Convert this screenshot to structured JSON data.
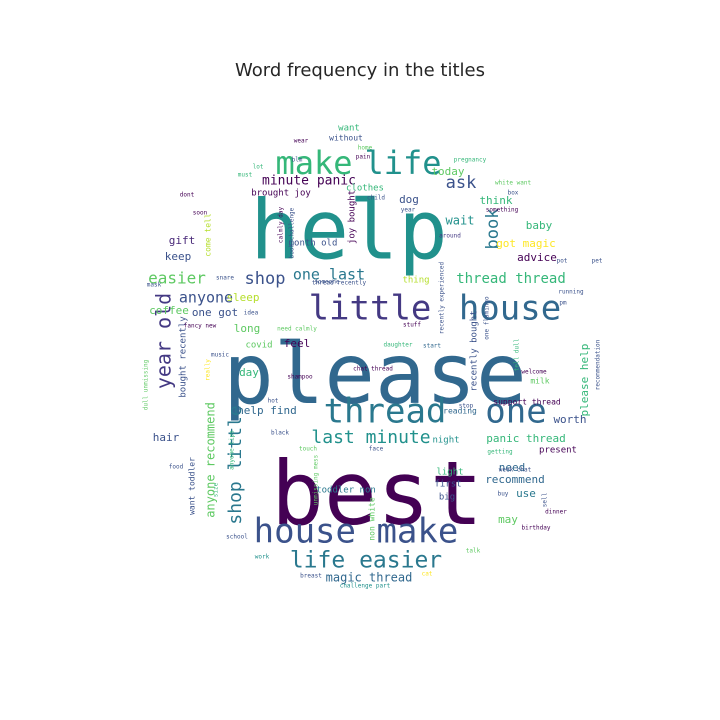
{
  "chart_data": {
    "type": "wordcloud",
    "title": "Word frequency in the titles",
    "shape": "circle",
    "background": "#ffffff",
    "colormap": "viridis",
    "words": [
      {
        "text": "please",
        "weight": 100,
        "color": "#31688e"
      },
      {
        "text": "best",
        "weight": 92,
        "color": "#440154"
      },
      {
        "text": "help",
        "weight": 88,
        "color": "#21918c"
      },
      {
        "text": "thread",
        "weight": 44,
        "color": "#2a788e"
      },
      {
        "text": "one",
        "weight": 44,
        "color": "#31688e"
      },
      {
        "text": "little",
        "weight": 42,
        "color": "#443983"
      },
      {
        "text": "house",
        "weight": 42,
        "color": "#31688e"
      },
      {
        "text": "make",
        "weight": 40,
        "color": "#35b779"
      },
      {
        "text": "life",
        "weight": 40,
        "color": "#21918c"
      },
      {
        "text": "house make",
        "weight": 39,
        "color": "#3b528b"
      },
      {
        "text": "life easier",
        "weight": 26,
        "color": "#2a788e"
      },
      {
        "text": "last minute",
        "weight": 22,
        "color": "#21918c"
      },
      {
        "text": "year old",
        "weight": 20,
        "color": "#443983"
      },
      {
        "text": "shop little",
        "weight": 19,
        "color": "#2a788e"
      },
      {
        "text": "easier",
        "weight": 18,
        "color": "#5ec962"
      },
      {
        "text": "shop",
        "weight": 18,
        "color": "#3b528b"
      },
      {
        "text": "one last",
        "weight": 16,
        "color": "#2a788e"
      },
      {
        "text": "book",
        "weight": 16,
        "color": "#2a788e"
      },
      {
        "text": "ask",
        "weight": 16,
        "color": "#3b528b"
      },
      {
        "text": "anyone",
        "weight": 15,
        "color": "#3b528b"
      },
      {
        "text": "thread thread",
        "weight": 15,
        "color": "#35b779"
      },
      {
        "text": "minute panic",
        "weight": 14,
        "color": "#440154"
      },
      {
        "text": "wait",
        "weight": 11,
        "color": "#21918c"
      },
      {
        "text": "magic thread",
        "weight": 11,
        "color": "#31688e"
      },
      {
        "text": "anyone recommend",
        "weight": 11,
        "color": "#5ec962"
      },
      {
        "text": "panic thread",
        "weight": 11,
        "color": "#35b779"
      },
      {
        "text": "please help",
        "weight": 11,
        "color": "#35b779"
      },
      {
        "text": "got magic",
        "weight": 11,
        "color": "#fde725"
      },
      {
        "text": "sleep",
        "weight": 11,
        "color": "#b5de2b"
      },
      {
        "text": "dog",
        "weight": 11,
        "color": "#3b528b"
      },
      {
        "text": "today",
        "weight": 11,
        "color": "#5ec962"
      },
      {
        "text": "baby",
        "weight": 11,
        "color": "#35b779"
      },
      {
        "text": "gift",
        "weight": 11,
        "color": "#482878"
      },
      {
        "text": "keep",
        "weight": 11,
        "color": "#3b528b"
      },
      {
        "text": "advice",
        "weight": 11,
        "color": "#440154"
      },
      {
        "text": "coffee",
        "weight": 11,
        "color": "#5ec962"
      },
      {
        "text": "one got",
        "weight": 11,
        "color": "#3b528b"
      },
      {
        "text": "long",
        "weight": 11,
        "color": "#5ec962"
      },
      {
        "text": "feel",
        "weight": 11,
        "color": "#440154"
      },
      {
        "text": "day",
        "weight": 11,
        "color": "#35b779"
      },
      {
        "text": "help find",
        "weight": 11,
        "color": "#31688e"
      },
      {
        "text": "hair",
        "weight": 11,
        "color": "#3b528b"
      },
      {
        "text": "recommend",
        "weight": 11,
        "color": "#31688e"
      },
      {
        "text": "need",
        "weight": 11,
        "color": "#31688e"
      },
      {
        "text": "use",
        "weight": 11,
        "color": "#2a788e"
      },
      {
        "text": "may",
        "weight": 11,
        "color": "#5ec962"
      },
      {
        "text": "worth",
        "weight": 11,
        "color": "#3b528b"
      },
      {
        "text": "think",
        "weight": 11,
        "color": "#35b779"
      },
      {
        "text": "present",
        "weight": 9,
        "color": "#440154"
      },
      {
        "text": "joy bought",
        "weight": 9,
        "color": "#440154"
      },
      {
        "text": "brought joy",
        "weight": 9,
        "color": "#440154"
      },
      {
        "text": "clothes",
        "weight": 9,
        "color": "#35b779"
      },
      {
        "text": "month old",
        "weight": 9,
        "color": "#3b528b"
      },
      {
        "text": "covid",
        "weight": 9,
        "color": "#5ec962"
      },
      {
        "text": "night",
        "weight": 9,
        "color": "#21918c"
      },
      {
        "text": "light",
        "weight": 9,
        "color": "#35b779"
      },
      {
        "text": "first",
        "weight": 9,
        "color": "#3b528b"
      },
      {
        "text": "big",
        "weight": 9,
        "color": "#3b528b"
      },
      {
        "text": "toddler non",
        "weight": 9,
        "color": "#2a788e"
      },
      {
        "text": "recently bought",
        "weight": 9,
        "color": "#3b528b"
      },
      {
        "text": "thing",
        "weight": 9,
        "color": "#b5de2b"
      },
      {
        "text": "bought recently",
        "weight": 9,
        "color": "#3b528b"
      },
      {
        "text": "want toddler",
        "weight": 8,
        "color": "#3b528b"
      },
      {
        "text": "milk",
        "weight": 8,
        "color": "#5ec962"
      },
      {
        "text": "support thread",
        "weight": 8,
        "color": "#440154"
      },
      {
        "text": "reading",
        "weight": 8,
        "color": "#31688e"
      },
      {
        "text": "non white",
        "weight": 8,
        "color": "#5ec962"
      },
      {
        "text": "without",
        "weight": 8,
        "color": "#3b528b"
      },
      {
        "text": "come tell",
        "weight": 8,
        "color": "#b5de2b"
      },
      {
        "text": "want",
        "weight": 8,
        "color": "#35b779"
      },
      {
        "text": "pregnancy",
        "weight": 6,
        "color": "#35b779"
      },
      {
        "text": "welcome",
        "weight": 6,
        "color": "#440154"
      },
      {
        "text": "stuff",
        "weight": 6,
        "color": "#440154"
      },
      {
        "text": "start",
        "weight": 6,
        "color": "#31688e"
      },
      {
        "text": "daughter",
        "weight": 6,
        "color": "#35b779"
      },
      {
        "text": "music",
        "weight": 6,
        "color": "#3b528b"
      },
      {
        "text": "really",
        "weight": 6,
        "color": "#fde725"
      },
      {
        "text": "shampoo",
        "weight": 6,
        "color": "#440154"
      },
      {
        "text": "chat thread",
        "weight": 6,
        "color": "#440154"
      },
      {
        "text": "someone",
        "weight": 6,
        "color": "#3b528b"
      },
      {
        "text": "running",
        "weight": 6,
        "color": "#3b528b"
      },
      {
        "text": "around",
        "weight": 6,
        "color": "#443983"
      },
      {
        "text": "school",
        "weight": 6,
        "color": "#3b528b"
      },
      {
        "text": "work",
        "weight": 6,
        "color": "#21918c"
      },
      {
        "text": "birthday",
        "weight": 6,
        "color": "#440154"
      },
      {
        "text": "dinner",
        "weight": 6,
        "color": "#440154"
      },
      {
        "text": "getting",
        "weight": 6,
        "color": "#35b779"
      },
      {
        "text": "recommendation",
        "weight": 6,
        "color": "#3b528b"
      },
      {
        "text": "challenge part",
        "weight": 6,
        "color": "#21918c"
      },
      {
        "text": "breast",
        "weight": 6,
        "color": "#3b528b"
      },
      {
        "text": "face",
        "weight": 6,
        "color": "#3b528b"
      },
      {
        "text": "touch",
        "weight": 6,
        "color": "#5ec962"
      },
      {
        "text": "black",
        "weight": 6,
        "color": "#3b528b"
      },
      {
        "text": "food",
        "weight": 6,
        "color": "#3b528b"
      },
      {
        "text": "fancy new",
        "weight": 6,
        "color": "#440154"
      },
      {
        "text": "wear",
        "weight": 6,
        "color": "#440154"
      },
      {
        "text": "home",
        "weight": 6,
        "color": "#5ec962"
      },
      {
        "text": "pain",
        "weight": 6,
        "color": "#440154"
      },
      {
        "text": "child",
        "weight": 6,
        "color": "#3b528b"
      },
      {
        "text": "white want",
        "weight": 6,
        "color": "#5ec962"
      },
      {
        "text": "something",
        "weight": 6,
        "color": "#440154"
      },
      {
        "text": "box",
        "weight": 6,
        "color": "#3b528b"
      },
      {
        "text": "book challenge",
        "weight": 6,
        "color": "#3b528b"
      },
      {
        "text": "week chat",
        "weight": 6,
        "color": "#3b528b"
      },
      {
        "text": "tell dull",
        "weight": 6,
        "color": "#35b779"
      },
      {
        "text": "buy",
        "weight": 6,
        "color": "#3b528b"
      },
      {
        "text": "stop",
        "weight": 6,
        "color": "#3b528b"
      },
      {
        "text": "size",
        "weight": 6,
        "color": "#35b779"
      },
      {
        "text": "cat",
        "weight": 6,
        "color": "#fde725"
      },
      {
        "text": "talk",
        "weight": 6,
        "color": "#5ec962"
      },
      {
        "text": "need calmly",
        "weight": 6,
        "color": "#5ec962"
      },
      {
        "text": "calmly day",
        "weight": 6,
        "color": "#440154"
      },
      {
        "text": "one flamingo",
        "weight": 6,
        "color": "#3b528b"
      },
      {
        "text": "thread recently",
        "weight": 6,
        "color": "#3b528b"
      },
      {
        "text": "recently experienced",
        "weight": 6,
        "color": "#3b528b"
      },
      {
        "text": "unmissing mess",
        "weight": 6,
        "color": "#5ec962"
      },
      {
        "text": "dull unmissing",
        "weight": 6,
        "color": "#5ec962"
      },
      {
        "text": "anyone tips",
        "weight": 6,
        "color": "#35b779"
      },
      {
        "text": "mask",
        "weight": 6,
        "color": "#3b528b"
      },
      {
        "text": "snare",
        "weight": 6,
        "color": "#3b528b"
      },
      {
        "text": "sell",
        "weight": 6,
        "color": "#3b528b"
      },
      {
        "text": "year",
        "weight": 6,
        "color": "#3b528b"
      },
      {
        "text": "lot",
        "weight": 6,
        "color": "#35b779"
      },
      {
        "text": "must",
        "weight": 6,
        "color": "#35b779"
      },
      {
        "text": "dont",
        "weight": 6,
        "color": "#440154"
      },
      {
        "text": "pot",
        "weight": 6,
        "color": "#3b528b"
      },
      {
        "text": "pet",
        "weight": 6,
        "color": "#3b528b"
      },
      {
        "text": "pm",
        "weight": 6,
        "color": "#3b528b"
      },
      {
        "text": "soon",
        "weight": 6,
        "color": "#440154"
      },
      {
        "text": "blm",
        "weight": 6,
        "color": "#3b528b"
      },
      {
        "text": "idea",
        "weight": 6,
        "color": "#3b528b"
      },
      {
        "text": "hot",
        "weight": 6,
        "color": "#3b528b"
      }
    ]
  }
}
